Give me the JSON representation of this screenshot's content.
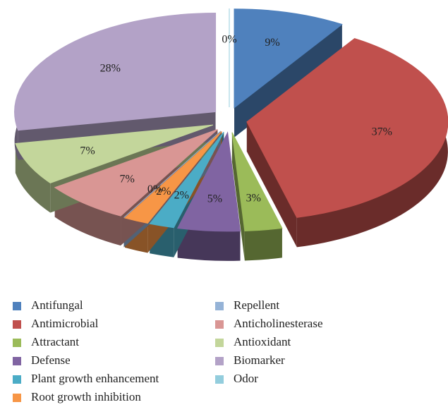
{
  "chart_data": {
    "type": "pie",
    "categories": [
      "Antifungal",
      "Antimicrobial",
      "Attractant",
      "Defense",
      "Plant growth enhancement",
      "Root growth inhibition",
      "Repellent",
      "Anticholinesterase",
      "Antioxidant",
      "Biomarker",
      "Odor"
    ],
    "values": [
      9,
      37,
      3,
      5,
      2,
      2,
      0,
      7,
      7,
      28,
      0
    ],
    "value_labels": [
      "9%",
      "37%",
      "3%",
      "5%",
      "2%",
      "2%",
      "0%",
      "7%",
      "7%",
      "28%",
      "0%"
    ],
    "colors": [
      "#4f81bd",
      "#c0504d",
      "#9bbb59",
      "#8064a2",
      "#4bacc6",
      "#f79646",
      "#95b3d7",
      "#d99694",
      "#c3d69b",
      "#b3a2c7",
      "#93cddd"
    ],
    "legend_order": [
      0,
      6,
      1,
      7,
      2,
      8,
      3,
      9,
      4,
      10,
      5
    ]
  }
}
